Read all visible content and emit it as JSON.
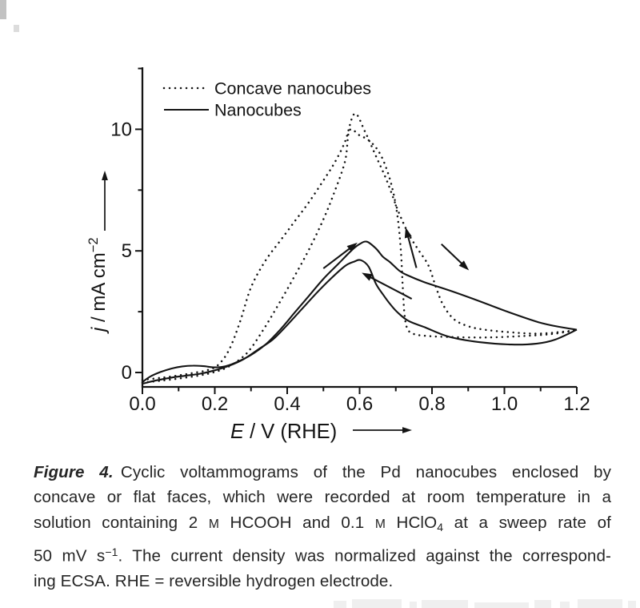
{
  "caption": {
    "label": "Figure 4.",
    "l1": "Cyclic voltammograms of the Pd nanocubes enclosed by",
    "l2": "concave or flat faces, which were recorded at room temperature in a",
    "l3a": "solution containing 2 ",
    "m1": "M",
    "l3b": " HCOOH and 0.1 ",
    "m2": "M",
    "l3c": " HClO",
    "sub4": "4",
    "l3d": " at a sweep rate of",
    "l4a": "50 mV s",
    "sup1": "−1",
    "l4b": ". The current density was normalized against the correspond-",
    "l5": "ing ECSA. RHE = reversible hydrogen electrode."
  },
  "chart_data": {
    "type": "line",
    "title": "",
    "xlabel": "E / V (RHE)",
    "ylabel": "j / mA cm−2",
    "xlabel_parts": {
      "var": "E",
      "rest": " / V (RHE)"
    },
    "ylabel_parts": {
      "var": "j",
      "rest": " / mA cm",
      "sup": "−2"
    },
    "xlim": [
      0,
      1.2
    ],
    "ylim": [
      -0.6,
      12.55
    ],
    "grid": false,
    "legend_position": "upper-left-inside",
    "line_color": "#141414",
    "axes": {
      "x_ticks": [
        {
          "v": 0.0,
          "label": "0.0"
        },
        {
          "v": 0.2,
          "label": "0.2"
        },
        {
          "v": 0.4,
          "label": "0.4"
        },
        {
          "v": 0.6,
          "label": "0.6"
        },
        {
          "v": 0.8,
          "label": "0.8"
        },
        {
          "v": 1.0,
          "label": "1.0"
        },
        {
          "v": 1.2,
          "label": "1.2"
        }
      ],
      "x_minor": [
        0.1,
        0.3,
        0.5,
        0.7,
        0.9,
        1.1
      ],
      "y_ticks": [
        {
          "v": 0,
          "label": "0"
        },
        {
          "v": 5,
          "label": "5"
        },
        {
          "v": 10,
          "label": "10"
        }
      ],
      "y_minor": [
        2.5,
        7.5,
        12.5
      ]
    },
    "legend": [
      {
        "label": "Concave nanocubes",
        "style": "dotted"
      },
      {
        "label": "Nanocubes",
        "style": "solid"
      }
    ],
    "series": [
      {
        "name": "concave-nanocubes-forward",
        "style": "dotted",
        "points": [
          [
            0.0,
            -0.3
          ],
          [
            0.05,
            -0.22
          ],
          [
            0.1,
            -0.12
          ],
          [
            0.14,
            -0.02
          ],
          [
            0.18,
            0.1
          ],
          [
            0.21,
            0.32
          ],
          [
            0.24,
            0.95
          ],
          [
            0.27,
            2.1
          ],
          [
            0.3,
            3.5
          ],
          [
            0.34,
            4.6
          ],
          [
            0.38,
            5.4
          ],
          [
            0.42,
            6.2
          ],
          [
            0.46,
            7.0
          ],
          [
            0.5,
            7.9
          ],
          [
            0.53,
            8.6
          ],
          [
            0.56,
            9.5
          ],
          [
            0.586,
            10.64
          ],
          [
            0.615,
            9.9
          ],
          [
            0.645,
            8.9
          ],
          [
            0.675,
            7.9
          ],
          [
            0.705,
            6.7
          ],
          [
            0.735,
            5.7
          ],
          [
            0.762,
            5.05
          ],
          [
            0.79,
            4.4
          ],
          [
            0.81,
            3.55
          ],
          [
            0.83,
            2.8
          ],
          [
            0.86,
            2.2
          ],
          [
            0.9,
            1.9
          ],
          [
            0.95,
            1.75
          ],
          [
            1.02,
            1.65
          ],
          [
            1.1,
            1.6
          ],
          [
            1.2,
            1.74
          ]
        ]
      },
      {
        "name": "concave-nanocubes-backward",
        "style": "dotted",
        "points": [
          [
            0.0,
            -0.42
          ],
          [
            0.05,
            -0.34
          ],
          [
            0.1,
            -0.25
          ],
          [
            0.15,
            -0.14
          ],
          [
            0.19,
            -0.02
          ],
          [
            0.23,
            0.18
          ],
          [
            0.27,
            0.55
          ],
          [
            0.3,
            1.0
          ],
          [
            0.34,
            1.9
          ],
          [
            0.38,
            2.9
          ],
          [
            0.42,
            3.95
          ],
          [
            0.46,
            5.05
          ],
          [
            0.5,
            6.3
          ],
          [
            0.53,
            7.4
          ],
          [
            0.56,
            8.7
          ],
          [
            0.572,
            9.95
          ],
          [
            0.6,
            9.75
          ],
          [
            0.625,
            9.55
          ],
          [
            0.65,
            9.15
          ],
          [
            0.67,
            8.55
          ],
          [
            0.69,
            7.6
          ],
          [
            0.705,
            6.4
          ],
          [
            0.714,
            5.0
          ],
          [
            0.719,
            3.6
          ],
          [
            0.724,
            2.4
          ],
          [
            0.732,
            1.8
          ],
          [
            0.75,
            1.58
          ],
          [
            0.79,
            1.5
          ],
          [
            0.85,
            1.46
          ],
          [
            0.95,
            1.44
          ],
          [
            1.05,
            1.5
          ],
          [
            1.13,
            1.58
          ],
          [
            1.2,
            1.74
          ]
        ]
      },
      {
        "name": "nanocubes-forward",
        "style": "solid",
        "points": [
          [
            0.0,
            -0.4
          ],
          [
            0.02,
            -0.18
          ],
          [
            0.05,
            0.02
          ],
          [
            0.08,
            0.16
          ],
          [
            0.11,
            0.25
          ],
          [
            0.14,
            0.28
          ],
          [
            0.17,
            0.26
          ],
          [
            0.2,
            0.21
          ],
          [
            0.23,
            0.26
          ],
          [
            0.26,
            0.42
          ],
          [
            0.3,
            0.72
          ],
          [
            0.34,
            1.15
          ],
          [
            0.38,
            1.75
          ],
          [
            0.42,
            2.45
          ],
          [
            0.46,
            3.15
          ],
          [
            0.5,
            3.85
          ],
          [
            0.54,
            4.45
          ],
          [
            0.58,
            5.05
          ],
          [
            0.6,
            5.28
          ],
          [
            0.62,
            5.38
          ],
          [
            0.645,
            5.1
          ],
          [
            0.665,
            4.75
          ],
          [
            0.683,
            4.55
          ],
          [
            0.71,
            4.18
          ],
          [
            0.729,
            4.02
          ],
          [
            0.778,
            3.72
          ],
          [
            0.851,
            3.36
          ],
          [
            0.926,
            2.96
          ],
          [
            1.014,
            2.47
          ],
          [
            1.094,
            2.07
          ],
          [
            1.15,
            1.88
          ],
          [
            1.2,
            1.76
          ]
        ]
      },
      {
        "name": "nanocubes-backward",
        "style": "solid",
        "points": [
          [
            0.0,
            -0.46
          ],
          [
            0.04,
            -0.32
          ],
          [
            0.08,
            -0.21
          ],
          [
            0.12,
            -0.13
          ],
          [
            0.16,
            -0.05
          ],
          [
            0.2,
            0.09
          ],
          [
            0.24,
            0.28
          ],
          [
            0.28,
            0.55
          ],
          [
            0.32,
            0.95
          ],
          [
            0.36,
            1.35
          ],
          [
            0.4,
            1.95
          ],
          [
            0.44,
            2.6
          ],
          [
            0.48,
            3.25
          ],
          [
            0.52,
            3.85
          ],
          [
            0.56,
            4.38
          ],
          [
            0.585,
            4.56
          ],
          [
            0.603,
            4.62
          ],
          [
            0.625,
            4.35
          ],
          [
            0.645,
            3.65
          ],
          [
            0.665,
            3.2
          ],
          [
            0.685,
            2.8
          ],
          [
            0.705,
            2.47
          ],
          [
            0.735,
            2.12
          ],
          [
            0.78,
            1.86
          ],
          [
            0.845,
            1.48
          ],
          [
            0.93,
            1.25
          ],
          [
            1.02,
            1.15
          ],
          [
            1.09,
            1.19
          ],
          [
            1.14,
            1.35
          ],
          [
            1.2,
            1.76
          ]
        ]
      }
    ],
    "annotations": {
      "arrows": [
        {
          "name": "forward-scan-up-arrow",
          "from": [
            0.5,
            4.28
          ],
          "to": [
            0.594,
            5.34
          ]
        },
        {
          "name": "backward-scan-left-arrow",
          "from": [
            0.744,
            3.03
          ],
          "to": [
            0.606,
            4.1
          ]
        },
        {
          "name": "reverse-rise-up-arrow",
          "from": [
            0.757,
            4.3
          ],
          "to": [
            0.727,
            5.97
          ]
        },
        {
          "name": "forward-descent-arrow",
          "from": [
            0.826,
            5.28
          ],
          "to": [
            0.902,
            4.2
          ]
        }
      ]
    }
  }
}
